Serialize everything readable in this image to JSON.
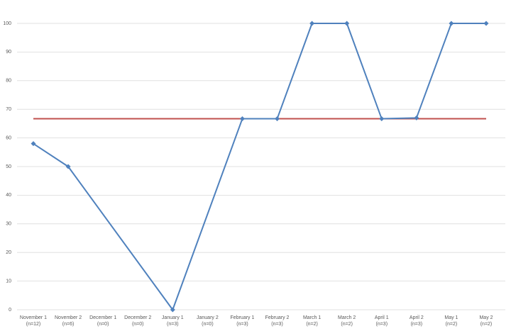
{
  "chart_data": {
    "type": "line",
    "categories": [
      "November 1",
      "November 2",
      "December 1",
      "December 2",
      "January 1",
      "January 2",
      "February 1",
      "February 2",
      "March 1",
      "March 2",
      "April 1",
      "April 2",
      "May 1",
      "May 2"
    ],
    "category_counts": [
      "(n=12)",
      "(n=6)",
      "(n=0)",
      "(n=0)",
      "(n=3)",
      "(n=0)",
      "(n=3)",
      "(n=3)",
      "(n=2)",
      "(n=2)",
      "(n=3)",
      "(n=3)",
      "(n=2)",
      "(n=2)"
    ],
    "series": [
      {
        "color": "#4f81bd",
        "markers": true,
        "values": [
          58,
          50,
          null,
          null,
          0,
          null,
          66.7,
          66.7,
          100,
          100,
          66.7,
          67,
          100,
          100
        ]
      },
      {
        "color": "#c0504d",
        "markers": false,
        "values": [
          66.7,
          66.7,
          66.7,
          66.7,
          66.7,
          66.7,
          66.7,
          66.7,
          66.7,
          66.7,
          66.7,
          66.7,
          66.7,
          66.7
        ]
      }
    ],
    "connect_gaps": true,
    "ylim": [
      0,
      100
    ],
    "yticks": [
      0,
      10,
      20,
      30,
      40,
      50,
      60,
      70,
      80,
      90,
      100
    ],
    "grid": true
  }
}
